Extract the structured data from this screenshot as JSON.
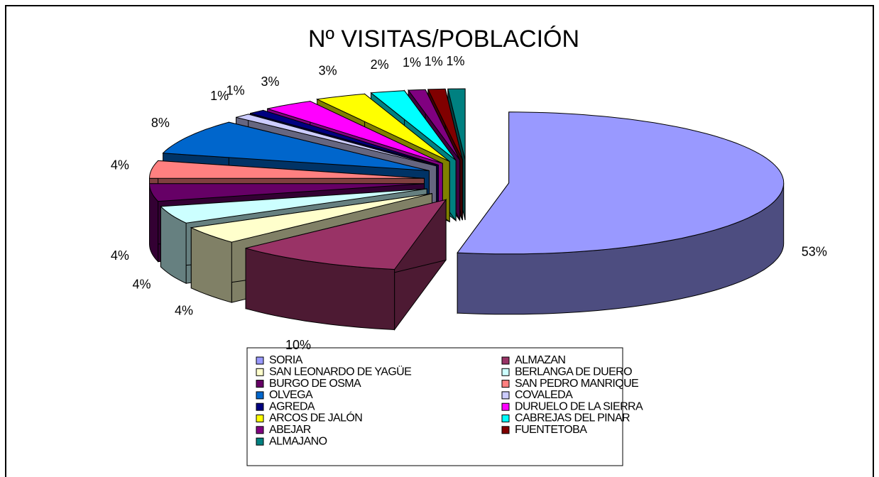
{
  "chart_data": {
    "type": "pie3d",
    "title": "Nº VISITAS/POBLACIÓN",
    "categories": [
      "SORIA",
      "ALMAZAN",
      "SAN LEONARDO DE YAGÜE",
      "BERLANGA DE DUERO",
      "BURGO DE OSMA",
      "SAN PEDRO MANRIQUE",
      "OLVEGA",
      "COVALEDA",
      "AGREDA",
      "DURUELO DE LA SIERRA",
      "ARCOS DE JALÓN",
      "CABREJAS DEL PINAR",
      "ABEJAR",
      "FUENTETOBA",
      "ALMAJANO"
    ],
    "values": [
      53,
      10,
      4,
      4,
      4,
      4,
      8,
      1,
      1,
      3,
      3,
      2,
      1,
      1,
      1
    ],
    "value_labels": [
      "53%",
      "10%",
      "4%",
      "4%",
      "4%",
      "4%",
      "8%",
      "1%",
      "1%",
      "3%",
      "3%",
      "2%",
      "1%",
      "1%",
      "1%"
    ],
    "colors": [
      "#9999ff",
      "#993366",
      "#ffffcc",
      "#ccffff",
      "#660066",
      "#ff8080",
      "#0066cc",
      "#ccccff",
      "#000080",
      "#ff00ff",
      "#ffff00",
      "#00ffff",
      "#800080",
      "#800000",
      "#008080"
    ],
    "legend": "bottom"
  }
}
